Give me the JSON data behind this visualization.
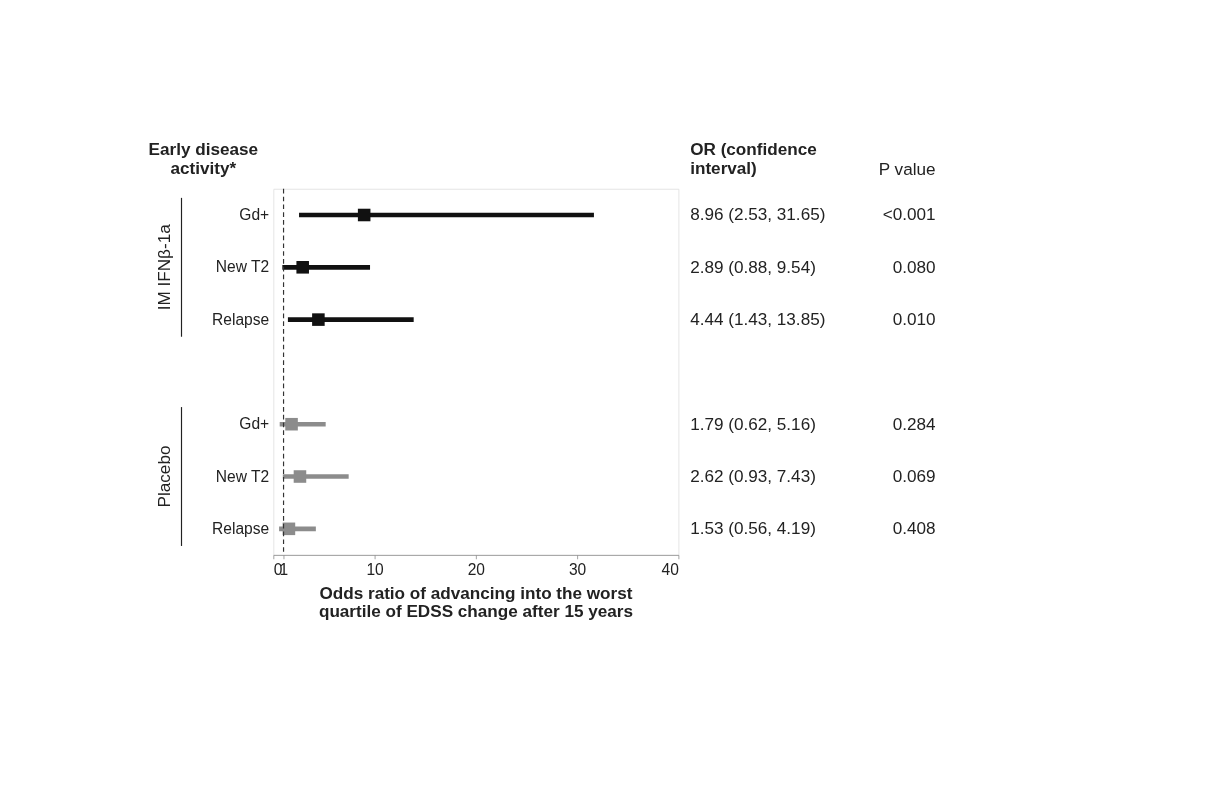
{
  "chart_data": {
    "type": "scatter",
    "orientation": "horizontal",
    "ylabel": "Early disease activity*",
    "xlabel": "Odds ratio of advancing into the worst quartile of EDSS change after 15 years",
    "categories": [
      "Gd+",
      "New T2",
      "Relapse",
      null,
      "Gd+",
      "New T2",
      "Relapse"
    ],
    "series": [
      {
        "color": "#111111",
        "values": [
          8.96,
          2.89,
          4.44,
          null,
          null,
          null,
          null
        ],
        "errors": [
          [
            2.53,
            31.65
          ],
          [
            0.88,
            9.54
          ],
          [
            1.43,
            13.85
          ],
          null,
          null,
          null,
          null
        ]
      },
      {
        "color": "#8c8c8c",
        "values": [
          null,
          null,
          null,
          null,
          1.79,
          2.62,
          1.53
        ],
        "errors": [
          null,
          null,
          null,
          null,
          [
            0.62,
            5.16
          ],
          [
            0.93,
            7.43
          ],
          [
            0.56,
            4.19
          ]
        ]
      }
    ],
    "annotations": [
      "OR (confidence interval)",
      "P value",
      "8.96 (2.53, 31.65)",
      "2.89 (0.88, 9.54)",
      "4.44 (1.43, 13.85)",
      "1.79 (0.62, 5.16)",
      "2.62 (0.93, 7.43)",
      "1.53 (0.56, 4.19)",
      "<0.001",
      "0.080",
      "0.010",
      "0.284",
      "0.069",
      "0.408",
      "IM IFNβ-1a",
      "Placebo"
    ],
    "xlim": [
      0,
      40
    ],
    "xticks": [
      0,
      1,
      10,
      20,
      30,
      40
    ],
    "ref_lines": [
      {
        "axis": "x",
        "value": 1,
        "line_style": "dashed",
        "color": "#333333"
      }
    ],
    "marker": "square",
    "grid": false
  }
}
